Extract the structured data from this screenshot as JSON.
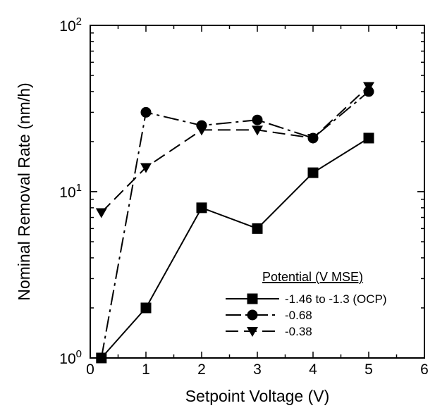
{
  "chart_data": {
    "type": "line",
    "xlabel": "Setpoint Voltage (V)",
    "ylabel": "Nominal Removal Rate (nm/h)",
    "xlim": [
      0,
      6
    ],
    "ylim": [
      1,
      100
    ],
    "yscale": "log",
    "xticks": [
      "0",
      "1",
      "2",
      "3",
      "4",
      "5",
      "6"
    ],
    "yticks": [
      {
        "value": 1,
        "base": "10",
        "exp": "0"
      },
      {
        "value": 10,
        "base": "10",
        "exp": "1"
      },
      {
        "value": 100,
        "base": "10",
        "exp": "2"
      }
    ],
    "legend_title": "Potential (V MSE)",
    "legend_position": "bottom-right",
    "series": [
      {
        "name": "-1.46 to -1.3 (OCP)",
        "marker": "square",
        "line": "solid",
        "x": [
          0.2,
          1,
          2,
          3,
          4,
          5
        ],
        "y": [
          1.0,
          2.0,
          8.0,
          6.0,
          13.0,
          21.0
        ]
      },
      {
        "name": "-0.68",
        "marker": "circle",
        "line": "dashdot",
        "x": [
          0.2,
          1,
          2,
          3,
          4,
          5
        ],
        "y": [
          1.0,
          30.0,
          25.0,
          27.0,
          21.0,
          40.0
        ]
      },
      {
        "name": "-0.38",
        "marker": "triangle-down",
        "line": "dashed",
        "x": [
          0.2,
          1,
          2,
          3,
          4,
          5
        ],
        "y": [
          7.5,
          14.0,
          23.5,
          23.5,
          21.0,
          43.0
        ]
      }
    ]
  }
}
